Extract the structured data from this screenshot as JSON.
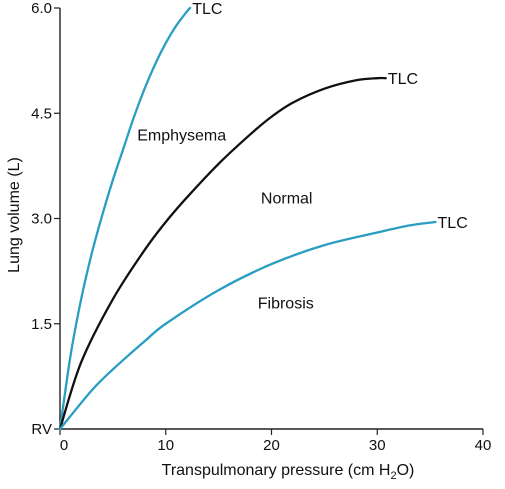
{
  "chart_data": {
    "type": "line",
    "title": "",
    "xlabel": "Transpulmonary pressure  (cm H",
    "xlabel_sub": "2",
    "xlabel_end": "O)",
    "ylabel": "Lung volume (L)",
    "xlim": [
      0,
      40
    ],
    "ylim": [
      0,
      6.0
    ],
    "x_ticks": [
      0,
      10,
      20,
      30,
      40
    ],
    "x_tick_labels": [
      "0",
      "10",
      "20",
      "30",
      "40"
    ],
    "y_ticks": [
      0,
      1.5,
      3.0,
      4.5,
      6.0
    ],
    "y_tick_labels": [
      "RV",
      "1.5",
      "3.0",
      "4.5",
      "6.0"
    ],
    "grid": false,
    "series": [
      {
        "name": "Emphysema",
        "color": "#2a9ec2",
        "x": [
          0,
          1,
          2,
          3,
          4,
          5,
          6,
          7,
          8,
          9,
          10,
          11,
          12,
          12.3
        ],
        "y": [
          0,
          1.05,
          1.85,
          2.5,
          3.05,
          3.55,
          4.0,
          4.45,
          4.85,
          5.2,
          5.5,
          5.75,
          5.95,
          6.0
        ]
      },
      {
        "name": "Normal",
        "color": "#111111",
        "x": [
          0,
          2,
          5,
          8,
          10,
          12,
          15,
          18,
          20,
          22,
          25,
          28,
          30,
          30.8
        ],
        "y": [
          0,
          0.95,
          1.85,
          2.55,
          2.95,
          3.3,
          3.78,
          4.2,
          4.45,
          4.65,
          4.85,
          4.97,
          5.0,
          5.0
        ]
      },
      {
        "name": "Fibrosis",
        "color": "#2a9ec2",
        "x": [
          0,
          3,
          5,
          8,
          10,
          15,
          20,
          25,
          30,
          33,
          35.5
        ],
        "y": [
          0,
          0.55,
          0.85,
          1.25,
          1.5,
          1.98,
          2.35,
          2.62,
          2.8,
          2.9,
          2.95
        ]
      }
    ],
    "annotations": [
      {
        "text": "TLC",
        "x": 12.5,
        "y": 6.0
      },
      {
        "text": "TLC",
        "x": 31.0,
        "y": 5.0
      },
      {
        "text": "TLC",
        "x": 35.7,
        "y": 2.95
      },
      {
        "text": "Emphysema",
        "x": 7.3,
        "y": 4.2
      },
      {
        "text": "Normal",
        "x": 19.0,
        "y": 3.3
      },
      {
        "text": "Fibrosis",
        "x": 18.7,
        "y": 1.8
      }
    ]
  }
}
